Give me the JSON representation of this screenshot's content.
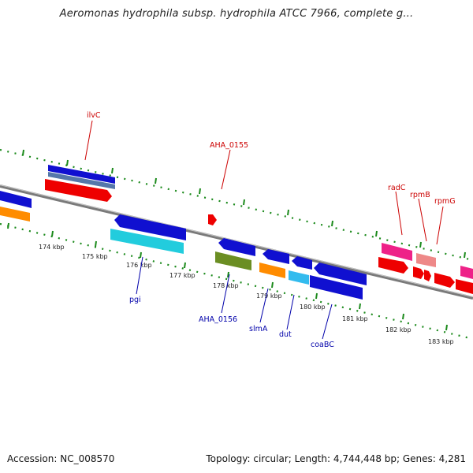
{
  "title": "Aeromonas hydrophila subsp. hydrophila ATCC 7966, complete g...",
  "footer": {
    "accession": "Accession: NC_008570",
    "summary": "Topology: circular; Length: 4,744,448 bp; Genes: 4,281"
  },
  "colors": {
    "backbone": "#7a7a7a",
    "dots": "#1b8a1b",
    "top_label": "#cc0000",
    "bottom_label": "#0000aa",
    "blue": "#1010d0",
    "red": "#ee0000",
    "orange": "#ff8c00",
    "cyan": "#22ccdd",
    "olive": "#6b8e23",
    "magenta": "#ee2288",
    "pink": "#ee8888",
    "light_blue": "#33bbee",
    "steel_blue": "#5577aa"
  },
  "scale": {
    "ticks": [
      "174 kbp",
      "175 kbp",
      "176 kbp",
      "177 kbp",
      "178 kbp",
      "179 kbp",
      "180 kbp",
      "181 kbp",
      "182 kbp",
      "183 kbp"
    ]
  },
  "top_labels": [
    "ilvC",
    "AHA_0155",
    "radC",
    "rpmB",
    "rpmG"
  ],
  "bottom_labels": [
    "pgi",
    "AHA_0156",
    "slmA",
    "dut",
    "coaBC"
  ]
}
